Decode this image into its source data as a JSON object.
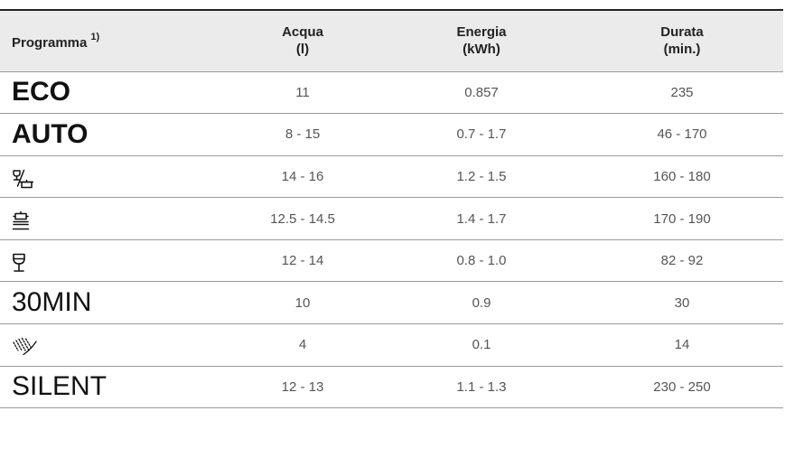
{
  "header": {
    "programma": "Programma",
    "footnote": "1)",
    "acqua_line1": "Acqua",
    "acqua_line2": "(l)",
    "energia_line1": "Energia",
    "energia_line2": "(kWh)",
    "durata_line1": "Durata",
    "durata_line2": "(min.)"
  },
  "rows": [
    {
      "programma": "ECO",
      "acqua": "11",
      "energia": "0.857",
      "durata": "235"
    },
    {
      "programma": "AUTO",
      "acqua": "8 - 15",
      "energia": "0.7 - 1.7",
      "durata": "46 - 170"
    },
    {
      "programma_icon": "glass-and-pot-icon",
      "acqua": "14 - 16",
      "energia": "1.2 - 1.5",
      "durata": "160 - 180"
    },
    {
      "programma_icon": "pot-intensive-icon",
      "acqua": "12.5 - 14.5",
      "energia": "1.4 - 1.7",
      "durata": "170 - 190"
    },
    {
      "programma_icon": "wine-glass-icon",
      "acqua": "12 - 14",
      "energia": "0.8 - 1.0",
      "durata": "82 - 92"
    },
    {
      "programma": "30MIN",
      "acqua": "10",
      "energia": "0.9",
      "durata": "30"
    },
    {
      "programma_icon": "rinse-spray-icon",
      "acqua": "4",
      "energia": "0.1",
      "durata": "14"
    },
    {
      "programma": "SILENT",
      "acqua": "12 - 13",
      "energia": "1.1 - 1.3",
      "durata": "230 - 250"
    }
  ]
}
